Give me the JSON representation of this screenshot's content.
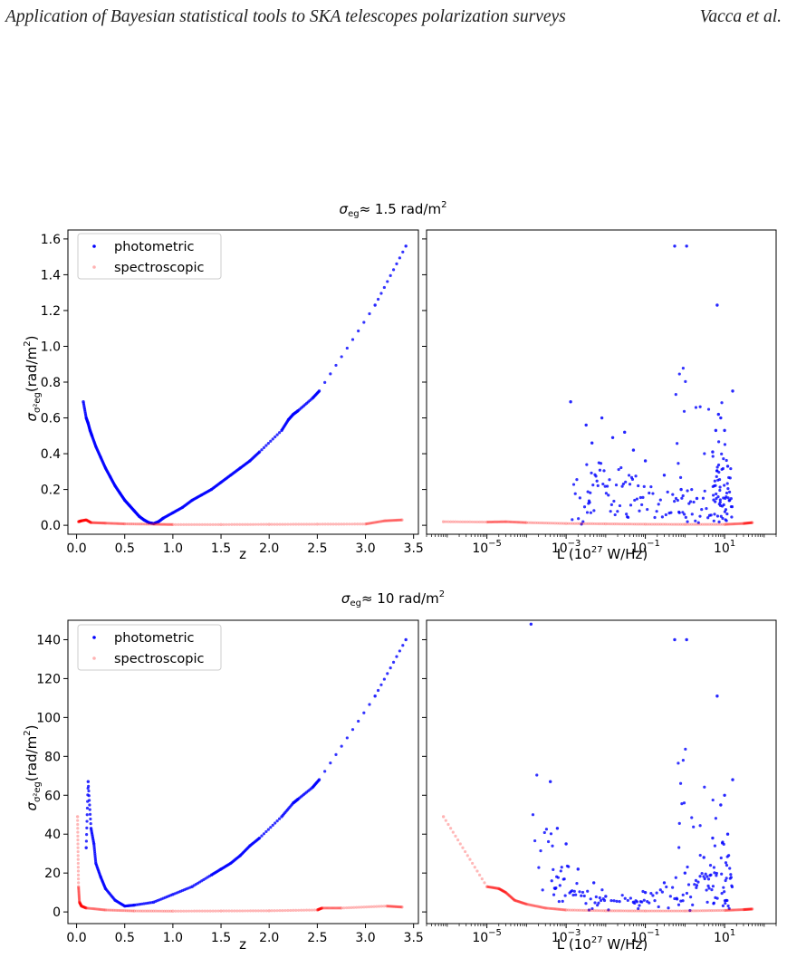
{
  "header": {
    "title": "Application of Bayesian statistical tools to SKA telescopes polarization surveys",
    "authors": "Vacca et al."
  },
  "figure": {
    "rows": [
      {
        "sup_prefix": "≈  1.5 rad/m",
        "sup_exp": "2"
      },
      {
        "sup_prefix": "≈  10 rad/m",
        "sup_exp": "2"
      }
    ],
    "ylabel_unit": "(rad/m",
    "ylabel_exp": "2",
    "xlabel_left": "z",
    "xlabel_right_prefix": "L (10",
    "xlabel_right_exp": "27",
    "xlabel_right_suffix": " W/Hz)",
    "legend": [
      "photometric",
      "spectroscopic"
    ]
  },
  "chart_data": [
    {
      "type": "scatter",
      "xscale": "linear",
      "yscale": "linear",
      "xlabel": "z",
      "ylabel": "σ_{σ²eg} (rad/m²)",
      "xlim": [
        -0.09,
        3.55
      ],
      "ylim": [
        -0.05,
        1.65
      ],
      "xticks": [
        0.0,
        0.5,
        1.0,
        1.5,
        2.0,
        2.5,
        3.0,
        3.5
      ],
      "yticks": [
        0.0,
        0.2,
        0.4,
        0.6,
        0.8,
        1.0,
        1.2,
        1.4,
        1.6
      ],
      "legend_position": "top-left",
      "series": [
        {
          "name": "photometric",
          "color": "#0000ff",
          "points": [
            [
              0.07,
              0.69
            ],
            [
              0.1,
              0.6
            ],
            [
              0.12,
              0.57
            ],
            [
              0.14,
              0.53
            ],
            [
              0.16,
              0.5
            ],
            [
              0.2,
              0.44
            ],
            [
              0.25,
              0.38
            ],
            [
              0.3,
              0.32
            ],
            [
              0.35,
              0.27
            ],
            [
              0.4,
              0.22
            ],
            [
              0.45,
              0.18
            ],
            [
              0.5,
              0.14
            ],
            [
              0.55,
              0.11
            ],
            [
              0.6,
              0.08
            ],
            [
              0.65,
              0.05
            ],
            [
              0.7,
              0.03
            ],
            [
              0.75,
              0.015
            ],
            [
              0.8,
              0.01
            ],
            [
              0.85,
              0.02
            ],
            [
              0.9,
              0.04
            ],
            [
              1.0,
              0.07
            ],
            [
              1.1,
              0.1
            ],
            [
              1.2,
              0.14
            ],
            [
              1.3,
              0.17
            ],
            [
              1.4,
              0.2
            ],
            [
              1.5,
              0.24
            ],
            [
              1.6,
              0.28
            ],
            [
              1.7,
              0.32
            ],
            [
              1.8,
              0.36
            ],
            [
              1.9,
              0.41
            ],
            [
              2.13,
              0.53
            ],
            [
              2.2,
              0.59
            ],
            [
              2.25,
              0.62
            ],
            [
              2.3,
              0.64
            ],
            [
              2.45,
              0.71
            ],
            [
              2.52,
              0.75
            ],
            [
              3.1,
              1.23
            ],
            [
              3.42,
              1.56
            ]
          ]
        },
        {
          "name": "spectroscopic",
          "color": "#ff0000",
          "points": [
            [
              0.02,
              0.02
            ],
            [
              0.05,
              0.025
            ],
            [
              0.1,
              0.03
            ],
            [
              0.15,
              0.015
            ],
            [
              0.3,
              0.012
            ],
            [
              0.5,
              0.008
            ],
            [
              0.8,
              0.006
            ],
            [
              1.0,
              0.004
            ],
            [
              1.5,
              0.004
            ],
            [
              2.0,
              0.005
            ],
            [
              2.5,
              0.006
            ],
            [
              3.0,
              0.007
            ],
            [
              3.2,
              0.025
            ],
            [
              3.38,
              0.03
            ]
          ]
        }
      ]
    },
    {
      "type": "scatter",
      "xscale": "log",
      "yscale": "linear",
      "xlabel": "L (10^27 W/Hz)",
      "ylabel": "",
      "xlim": [
        3e-07,
        200
      ],
      "ylim": [
        -0.05,
        1.65
      ],
      "xticks": [
        1e-05,
        0.001,
        0.1,
        10
      ],
      "legend_position": "none",
      "series": [
        {
          "name": "photometric",
          "color": "#0000ff",
          "points": [
            [
              0.0013,
              0.69
            ],
            [
              0.0032,
              0.56
            ],
            [
              0.0045,
              0.46
            ],
            [
              0.008,
              0.6
            ],
            [
              0.015,
              0.49
            ],
            [
              0.03,
              0.52
            ],
            [
              0.05,
              0.42
            ],
            [
              0.1,
              0.36
            ],
            [
              0.3,
              0.28
            ],
            [
              0.8,
              0.2
            ],
            [
              2,
              0.15
            ],
            [
              5,
              0.41
            ],
            [
              6,
              0.53
            ],
            [
              7,
              0.62
            ],
            [
              8,
              0.6
            ],
            [
              10,
              0.53
            ],
            [
              12,
              0.33
            ],
            [
              16,
              0.75
            ],
            [
              6.5,
              1.23
            ],
            [
              0.55,
              1.56
            ],
            [
              1.1,
              1.56
            ]
          ]
        },
        {
          "name": "spectroscopic",
          "color": "#ff0000",
          "points": [
            [
              8e-07,
              0.02
            ],
            [
              1e-05,
              0.018
            ],
            [
              3e-05,
              0.02
            ],
            [
              0.0001,
              0.015
            ],
            [
              0.001,
              0.01
            ],
            [
              0.01,
              0.008
            ],
            [
              0.1,
              0.006
            ],
            [
              1,
              0.005
            ],
            [
              10,
              0.005
            ],
            [
              30,
              0.01
            ],
            [
              50,
              0.015
            ]
          ]
        }
      ]
    },
    {
      "type": "scatter",
      "xscale": "linear",
      "yscale": "linear",
      "xlabel": "z",
      "ylabel": "σ_{σ²eg} (rad/m²)",
      "xlim": [
        -0.09,
        3.55
      ],
      "ylim": [
        -6,
        150
      ],
      "xticks": [
        0.0,
        0.5,
        1.0,
        1.5,
        2.0,
        2.5,
        3.0,
        3.5
      ],
      "yticks": [
        0,
        20,
        40,
        60,
        80,
        100,
        120,
        140
      ],
      "legend_position": "top-left",
      "series": [
        {
          "name": "photometric",
          "color": "#0000ff",
          "points": [
            [
              0.1,
              33
            ],
            [
              0.12,
              67
            ],
            [
              0.15,
              43
            ],
            [
              0.18,
              35
            ],
            [
              0.2,
              25
            ],
            [
              0.25,
              18
            ],
            [
              0.3,
              12
            ],
            [
              0.4,
              6
            ],
            [
              0.5,
              3
            ],
            [
              0.6,
              3.5
            ],
            [
              0.8,
              5
            ],
            [
              1.0,
              9
            ],
            [
              1.2,
              13
            ],
            [
              1.4,
              19
            ],
            [
              1.5,
              22
            ],
            [
              1.6,
              25
            ],
            [
              1.7,
              29
            ],
            [
              1.8,
              34
            ],
            [
              1.9,
              38
            ],
            [
              2.13,
              49
            ],
            [
              2.25,
              56
            ],
            [
              2.3,
              58
            ],
            [
              2.45,
              64
            ],
            [
              2.52,
              68
            ],
            [
              3.1,
              111
            ],
            [
              3.42,
              140
            ]
          ]
        },
        {
          "name": "spectroscopic",
          "color": "#ff0000",
          "points": [
            [
              0.01,
              49
            ],
            [
              0.02,
              13
            ],
            [
              0.03,
              5
            ],
            [
              0.05,
              3
            ],
            [
              0.1,
              2
            ],
            [
              0.3,
              1
            ],
            [
              0.6,
              0.5
            ],
            [
              1.0,
              0.4
            ],
            [
              1.5,
              0.5
            ],
            [
              2.0,
              0.6
            ],
            [
              2.5,
              1
            ],
            [
              2.55,
              2
            ],
            [
              2.75,
              2
            ],
            [
              3.22,
              3
            ],
            [
              3.38,
              2.5
            ]
          ]
        }
      ]
    },
    {
      "type": "scatter",
      "xscale": "log",
      "yscale": "linear",
      "xlabel": "L (10^27 W/Hz)",
      "ylabel": "",
      "xlim": [
        3e-07,
        200
      ],
      "ylim": [
        -6,
        150
      ],
      "xticks": [
        1e-05,
        0.001,
        0.1,
        10
      ],
      "legend_position": "none",
      "series": [
        {
          "name": "photometric",
          "color": "#0000ff",
          "points": [
            [
              0.00013,
              148
            ],
            [
              0.0004,
              67
            ],
            [
              0.0006,
              43
            ],
            [
              0.001,
              35
            ],
            [
              0.002,
              22
            ],
            [
              0.005,
              15
            ],
            [
              0.01,
              8
            ],
            [
              0.05,
              5
            ],
            [
              0.1,
              10
            ],
            [
              0.3,
              15
            ],
            [
              1,
              20
            ],
            [
              3,
              28
            ],
            [
              5,
              38
            ],
            [
              6.5,
              111
            ],
            [
              0.55,
              140
            ],
            [
              1.1,
              140
            ],
            [
              8,
              55
            ],
            [
              10,
              60
            ],
            [
              12,
              40
            ],
            [
              16,
              68
            ]
          ]
        },
        {
          "name": "spectroscopic",
          "color": "#ff0000",
          "points": [
            [
              8e-07,
              49
            ],
            [
              1e-05,
              13
            ],
            [
              2e-05,
              12
            ],
            [
              3e-05,
              10
            ],
            [
              5e-05,
              6
            ],
            [
              0.0001,
              4
            ],
            [
              0.0003,
              2
            ],
            [
              0.001,
              1
            ],
            [
              0.01,
              0.6
            ],
            [
              0.1,
              0.5
            ],
            [
              1,
              0.5
            ],
            [
              10,
              0.8
            ],
            [
              30,
              1.2
            ],
            [
              50,
              1.5
            ]
          ]
        }
      ]
    }
  ]
}
